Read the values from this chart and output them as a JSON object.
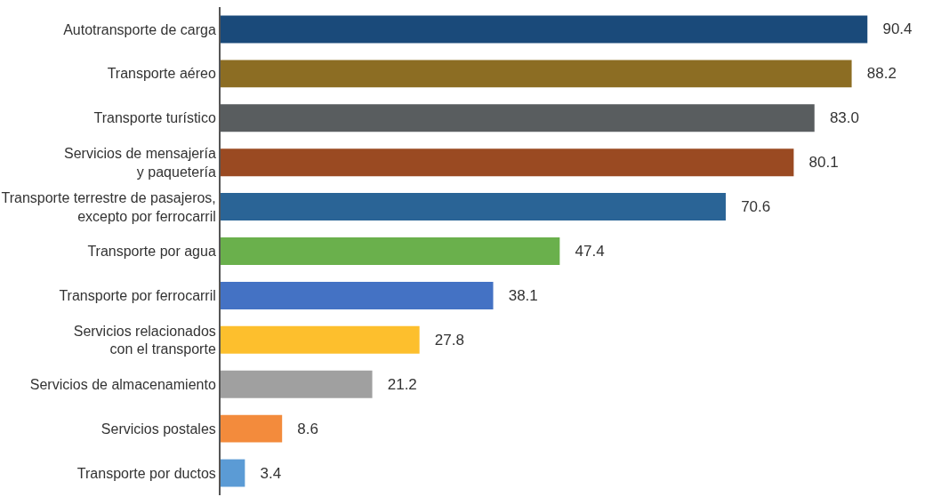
{
  "chart_data": {
    "type": "bar",
    "orientation": "horizontal",
    "categories": [
      "Autotransporte de carga",
      "Transporte aéreo",
      "Transporte turístico",
      "Servicios de mensajería\ny paquetería",
      "Transporte terrestre de pasajeros,\nexcepto por ferrocarril",
      "Transporte por agua",
      "Transporte por ferrocarril",
      "Servicios relacionados\ncon el transporte",
      "Servicios de almacenamiento",
      "Servicios postales",
      "Transporte por ductos"
    ],
    "values": [
      90.4,
      88.2,
      83.0,
      80.1,
      70.6,
      47.4,
      38.1,
      27.8,
      21.2,
      8.6,
      3.4
    ],
    "value_labels": [
      "90.4",
      "88.2",
      "83.0",
      "80.1",
      "70.6",
      "47.4",
      "38.1",
      "27.8",
      "21.2",
      "8.6",
      "3.4"
    ],
    "colors": [
      "#1a4a7a",
      "#8c6d23",
      "#595d5f",
      "#9a4a22",
      "#2a6496",
      "#6ab04c",
      "#4472c4",
      "#fdbf2d",
      "#a0a0a0",
      "#f38b3c",
      "#5b9bd5"
    ],
    "legend": false
  }
}
